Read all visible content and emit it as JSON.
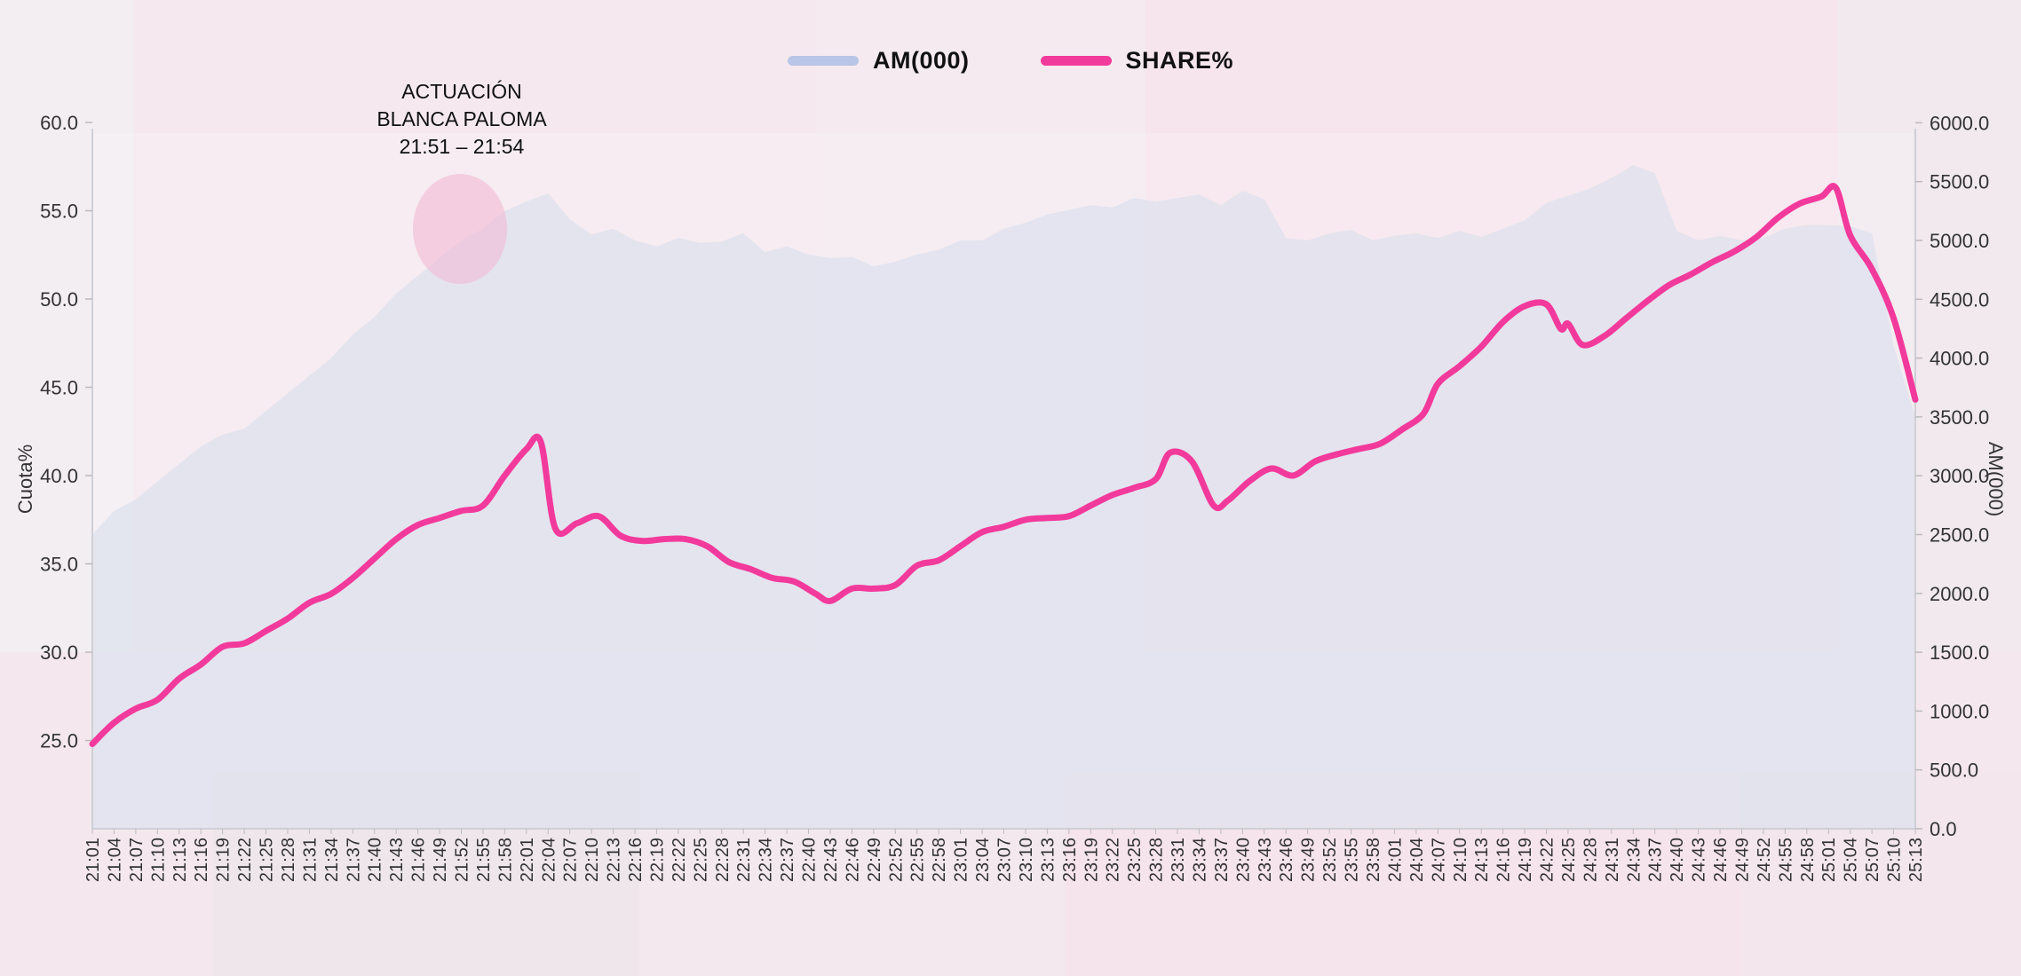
{
  "chart_data": {
    "type": "line",
    "legend": [
      {
        "name": "AM(000)",
        "color": "#b8c5e6"
      },
      {
        "name": "SHARE%",
        "color": "#f23a9c"
      }
    ],
    "annotation": {
      "line1": "ACTUACIÓN",
      "line2": "BLANCA PALOMA",
      "line3": "21:51 – 21:54"
    },
    "ylabel_left": "Cuota%",
    "ylabel_right": "AM(000)",
    "ylim_left": [
      20,
      60
    ],
    "ylim_right": [
      0,
      6000
    ],
    "y_ticks_left": [
      "60.0",
      "55.0",
      "50.0",
      "45.0",
      "40.0",
      "35.0",
      "30.0",
      "25.0"
    ],
    "y_ticks_right": [
      "6000.0",
      "5500.0",
      "5000.0",
      "4500.0",
      "4000.0",
      "3500.0",
      "3000.0",
      "2500.0",
      "2000.0",
      "1500.0",
      "1000.0",
      "500.0",
      "0.0"
    ],
    "x_start_minutes": 1261,
    "x_end_minutes": 1513,
    "categories": [
      "21:01",
      "21:04",
      "21:07",
      "21:10",
      "21:13",
      "21:16",
      "21:19",
      "21:22",
      "21:25",
      "21:28",
      "21:31",
      "21:34",
      "21:37",
      "21:40",
      "21:43",
      "21:46",
      "21:49",
      "21:52",
      "21:55",
      "21:58",
      "22:01",
      "22:04",
      "22:07",
      "22:10",
      "22:13",
      "22:16",
      "22:19",
      "22:22",
      "22:25",
      "22:28",
      "22:31",
      "22:34",
      "22:37",
      "22:40",
      "22:43",
      "22:46",
      "22:49",
      "22:52",
      "22:55",
      "22:58",
      "23:01",
      "23:04",
      "23:07",
      "23:10",
      "23:13",
      "23:16",
      "23:19",
      "23:22",
      "23:25",
      "23:28",
      "23:31",
      "23:34",
      "23:37",
      "23:40",
      "23:43",
      "23:46",
      "23:49",
      "23:52",
      "23:55",
      "23:58",
      "24:01",
      "24:04",
      "24:07",
      "24:10",
      "24:13",
      "24:16",
      "24:19",
      "24:22",
      "24:25",
      "24:28",
      "24:31",
      "24:34",
      "24:37",
      "24:40",
      "24:43",
      "24:46",
      "24:49",
      "24:52",
      "24:55",
      "24:58",
      "25:01",
      "25:04",
      "25:07",
      "25:10",
      "25:13"
    ],
    "series": [
      {
        "name": "AM(000)",
        "kind": "area",
        "axis": "right",
        "values": [
          [
            1261,
            2500
          ],
          [
            1264,
            2700
          ],
          [
            1267,
            2800
          ],
          [
            1270,
            2950
          ],
          [
            1273,
            3100
          ],
          [
            1276,
            3250
          ],
          [
            1279,
            3350
          ],
          [
            1282,
            3400
          ],
          [
            1285,
            3550
          ],
          [
            1288,
            3700
          ],
          [
            1291,
            3850
          ],
          [
            1294,
            4000
          ],
          [
            1297,
            4200
          ],
          [
            1300,
            4350
          ],
          [
            1303,
            4550
          ],
          [
            1306,
            4700
          ],
          [
            1309,
            4850
          ],
          [
            1312,
            5000
          ],
          [
            1315,
            5100
          ],
          [
            1318,
            5250
          ],
          [
            1321,
            5330
          ],
          [
            1324,
            5400
          ],
          [
            1327,
            5180
          ],
          [
            1330,
            5050
          ],
          [
            1333,
            5100
          ],
          [
            1336,
            5000
          ],
          [
            1339,
            4950
          ],
          [
            1342,
            5020
          ],
          [
            1345,
            4980
          ],
          [
            1348,
            4990
          ],
          [
            1351,
            5060
          ],
          [
            1354,
            4900
          ],
          [
            1357,
            4950
          ],
          [
            1360,
            4880
          ],
          [
            1363,
            4850
          ],
          [
            1366,
            4860
          ],
          [
            1369,
            4780
          ],
          [
            1372,
            4820
          ],
          [
            1375,
            4880
          ],
          [
            1378,
            4920
          ],
          [
            1381,
            5000
          ],
          [
            1384,
            5000
          ],
          [
            1387,
            5100
          ],
          [
            1390,
            5150
          ],
          [
            1393,
            5220
          ],
          [
            1396,
            5260
          ],
          [
            1399,
            5300
          ],
          [
            1402,
            5280
          ],
          [
            1405,
            5360
          ],
          [
            1408,
            5330
          ],
          [
            1411,
            5360
          ],
          [
            1414,
            5390
          ],
          [
            1417,
            5300
          ],
          [
            1420,
            5420
          ],
          [
            1423,
            5350
          ],
          [
            1426,
            5020
          ],
          [
            1429,
            5000
          ],
          [
            1432,
            5060
          ],
          [
            1435,
            5090
          ],
          [
            1438,
            5000
          ],
          [
            1441,
            5040
          ],
          [
            1444,
            5060
          ],
          [
            1447,
            5020
          ],
          [
            1450,
            5080
          ],
          [
            1453,
            5030
          ],
          [
            1456,
            5100
          ],
          [
            1459,
            5170
          ],
          [
            1462,
            5320
          ],
          [
            1465,
            5380
          ],
          [
            1468,
            5440
          ],
          [
            1471,
            5530
          ],
          [
            1474,
            5640
          ],
          [
            1477,
            5570
          ],
          [
            1480,
            5080
          ],
          [
            1483,
            5000
          ],
          [
            1486,
            5040
          ],
          [
            1489,
            5000
          ],
          [
            1492,
            5020
          ],
          [
            1495,
            5100
          ],
          [
            1498,
            5130
          ],
          [
            1501,
            5130
          ],
          [
            1504,
            5120
          ],
          [
            1507,
            5060
          ],
          [
            1510,
            4100
          ],
          [
            1513,
            3500
          ]
        ]
      },
      {
        "name": "SHARE%",
        "kind": "line",
        "axis": "left",
        "values": [
          [
            1261,
            24.8
          ],
          [
            1264,
            26.0
          ],
          [
            1267,
            26.8
          ],
          [
            1270,
            27.3
          ],
          [
            1273,
            28.5
          ],
          [
            1276,
            29.3
          ],
          [
            1279,
            30.3
          ],
          [
            1282,
            30.5
          ],
          [
            1285,
            31.2
          ],
          [
            1288,
            31.9
          ],
          [
            1291,
            32.8
          ],
          [
            1294,
            33.3
          ],
          [
            1297,
            34.2
          ],
          [
            1300,
            35.3
          ],
          [
            1303,
            36.4
          ],
          [
            1306,
            37.2
          ],
          [
            1309,
            37.6
          ],
          [
            1312,
            38.0
          ],
          [
            1315,
            38.3
          ],
          [
            1318,
            40.0
          ],
          [
            1321,
            41.5
          ],
          [
            1323,
            41.9
          ],
          [
            1325,
            37.0
          ],
          [
            1328,
            37.3
          ],
          [
            1331,
            37.7
          ],
          [
            1334,
            36.6
          ],
          [
            1337,
            36.3
          ],
          [
            1340,
            36.4
          ],
          [
            1343,
            36.4
          ],
          [
            1346,
            36.0
          ],
          [
            1349,
            35.1
          ],
          [
            1352,
            34.7
          ],
          [
            1355,
            34.2
          ],
          [
            1358,
            34.0
          ],
          [
            1361,
            33.3
          ],
          [
            1363,
            32.9
          ],
          [
            1366,
            33.6
          ],
          [
            1369,
            33.6
          ],
          [
            1372,
            33.8
          ],
          [
            1375,
            34.9
          ],
          [
            1378,
            35.2
          ],
          [
            1381,
            36.0
          ],
          [
            1384,
            36.8
          ],
          [
            1387,
            37.1
          ],
          [
            1390,
            37.5
          ],
          [
            1393,
            37.6
          ],
          [
            1396,
            37.7
          ],
          [
            1399,
            38.3
          ],
          [
            1402,
            38.9
          ],
          [
            1405,
            39.3
          ],
          [
            1408,
            39.8
          ],
          [
            1410,
            41.3
          ],
          [
            1413,
            40.8
          ],
          [
            1416,
            38.3
          ],
          [
            1418,
            38.6
          ],
          [
            1421,
            39.7
          ],
          [
            1424,
            40.4
          ],
          [
            1427,
            40.0
          ],
          [
            1430,
            40.8
          ],
          [
            1433,
            41.2
          ],
          [
            1436,
            41.5
          ],
          [
            1439,
            41.8
          ],
          [
            1442,
            42.6
          ],
          [
            1445,
            43.5
          ],
          [
            1447,
            45.2
          ],
          [
            1450,
            46.2
          ],
          [
            1453,
            47.3
          ],
          [
            1456,
            48.7
          ],
          [
            1459,
            49.6
          ],
          [
            1462,
            49.7
          ],
          [
            1464,
            48.3
          ],
          [
            1465,
            48.6
          ],
          [
            1467,
            47.4
          ],
          [
            1470,
            47.9
          ],
          [
            1473,
            48.9
          ],
          [
            1476,
            49.9
          ],
          [
            1479,
            50.8
          ],
          [
            1482,
            51.4
          ],
          [
            1485,
            52.1
          ],
          [
            1488,
            52.7
          ],
          [
            1491,
            53.5
          ],
          [
            1494,
            54.6
          ],
          [
            1497,
            55.4
          ],
          [
            1500,
            55.8
          ],
          [
            1502,
            56.3
          ],
          [
            1504,
            53.6
          ],
          [
            1507,
            51.7
          ],
          [
            1510,
            48.9
          ],
          [
            1513,
            44.3
          ]
        ]
      }
    ]
  }
}
